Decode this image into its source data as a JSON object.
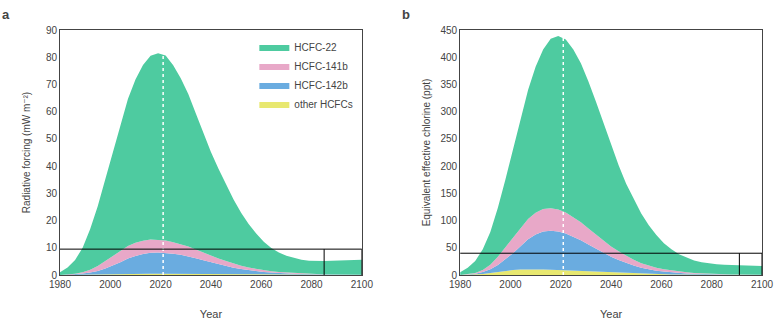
{
  "chart_data": [
    {
      "type": "area",
      "stacked": true,
      "title": "a",
      "xlabel": "Year",
      "ylabel": "Radiative forcing (mW m⁻²)",
      "x": [
        1980,
        1983,
        1986,
        1989,
        1992,
        1995,
        1998,
        2001,
        2004,
        2007,
        2010,
        2013,
        2016,
        2019,
        2022,
        2025,
        2028,
        2031,
        2034,
        2037,
        2040,
        2043,
        2046,
        2049,
        2052,
        2055,
        2058,
        2061,
        2064,
        2067,
        2070,
        2073,
        2076,
        2079,
        2082,
        2085,
        2088,
        2091,
        2094,
        2097,
        2100
      ],
      "series": [
        {
          "name": "other HCFCs",
          "color": "#e8e870",
          "values": [
            0.0,
            0.05,
            0.1,
            0.15,
            0.2,
            0.3,
            0.4,
            0.45,
            0.5,
            0.52,
            0.52,
            0.52,
            0.5,
            0.48,
            0.46,
            0.43,
            0.4,
            0.37,
            0.34,
            0.31,
            0.28,
            0.25,
            0.22,
            0.19,
            0.17,
            0.14,
            0.12,
            0.1,
            0.09,
            0.07,
            0.06,
            0.05,
            0.04,
            0.04,
            0.03,
            0.03,
            0.02,
            0.02,
            0.02,
            0.02,
            0.01
          ]
        },
        {
          "name": "HCFC-142b",
          "color": "#6aace0",
          "values": [
            0.0,
            0.1,
            0.2,
            0.4,
            0.7,
            1.2,
            2.0,
            3.0,
            4.2,
            5.5,
            6.5,
            7.2,
            7.7,
            7.8,
            7.7,
            7.4,
            7.0,
            6.5,
            5.8,
            5.1,
            4.4,
            3.7,
            3.1,
            2.5,
            2.0,
            1.6,
            1.3,
            1.0,
            0.8,
            0.6,
            0.5,
            0.4,
            0.3,
            0.25,
            0.2,
            0.15,
            0.12,
            0.1,
            0.08,
            0.07,
            0.06
          ]
        },
        {
          "name": "HCFC-141b",
          "color": "#e8a8c8",
          "values": [
            0.0,
            0.1,
            0.2,
            0.5,
            1.0,
            1.8,
            2.8,
            3.5,
            4.2,
            4.6,
            4.8,
            4.9,
            4.85,
            4.7,
            4.5,
            4.2,
            3.9,
            3.6,
            3.2,
            2.8,
            2.5,
            2.1,
            1.8,
            1.5,
            1.2,
            1.0,
            0.8,
            0.65,
            0.52,
            0.42,
            0.34,
            0.27,
            0.22,
            0.18,
            0.15,
            0.12,
            0.1,
            0.08,
            0.06,
            0.05,
            0.04
          ]
        },
        {
          "name": "HCFC-22",
          "color": "#4ecba0",
          "values": [
            1.0,
            2.5,
            5.0,
            9.0,
            15.0,
            22.0,
            30.0,
            38.0,
            46.0,
            54.0,
            60.0,
            64.5,
            67.5,
            68.5,
            68.0,
            65.0,
            61.0,
            56.0,
            50.0,
            44.0,
            38.0,
            33.0,
            28.0,
            23.5,
            19.5,
            16.0,
            13.0,
            10.5,
            8.5,
            7.2,
            6.2,
            5.5,
            5.0,
            4.8,
            4.7,
            4.8,
            5.0,
            5.2,
            5.3,
            5.4,
            5.5
          ]
        }
      ],
      "xlim": [
        1980,
        2100
      ],
      "xticks": [
        1980,
        2000,
        2020,
        2040,
        2060,
        2080,
        2100
      ],
      "ylim": [
        0,
        90
      ],
      "yticks": [
        0,
        10,
        20,
        30,
        40,
        50,
        60,
        70,
        80,
        90
      ],
      "vline_x": 2021,
      "hline_y": 9.5,
      "rect_x1": 2085,
      "legend": "upper right"
    },
    {
      "type": "area",
      "stacked": true,
      "title": "b",
      "xlabel": "Year",
      "ylabel": "Equivalent effective chlorine (ppt)",
      "x": [
        1980,
        1983,
        1986,
        1989,
        1992,
        1995,
        1998,
        2001,
        2004,
        2007,
        2010,
        2013,
        2016,
        2019,
        2022,
        2025,
        2028,
        2031,
        2034,
        2037,
        2040,
        2043,
        2046,
        2049,
        2052,
        2055,
        2058,
        2061,
        2064,
        2067,
        2070,
        2073,
        2076,
        2079,
        2082,
        2085,
        2088,
        2091,
        2094,
        2097,
        2100
      ],
      "series": [
        {
          "name": "other HCFCs",
          "color": "#e8e870",
          "values": [
            0.0,
            0.3,
            0.8,
            1.8,
            3.5,
            5.5,
            7.5,
            9.0,
            10.0,
            10.5,
            10.5,
            10.2,
            9.8,
            9.2,
            8.6,
            7.9,
            7.2,
            6.5,
            5.8,
            5.1,
            4.5,
            3.9,
            3.3,
            2.8,
            2.3,
            1.9,
            1.5,
            1.2,
            1.0,
            0.8,
            0.65,
            0.5,
            0.4,
            0.32,
            0.25,
            0.2,
            0.16,
            0.13,
            0.1,
            0.08,
            0.06
          ]
        },
        {
          "name": "HCFC-142b",
          "color": "#6aace0",
          "values": [
            0.0,
            0.5,
            1.5,
            3.5,
            7.0,
            13.0,
            21.0,
            31.0,
            43.0,
            55.0,
            64.0,
            69.5,
            71.5,
            70.5,
            67.5,
            62.5,
            56.5,
            49.5,
            42.5,
            35.5,
            29.0,
            23.5,
            18.5,
            14.5,
            11.0,
            8.5,
            6.5,
            5.0,
            3.8,
            2.9,
            2.2,
            1.7,
            1.3,
            1.0,
            0.8,
            0.6,
            0.5,
            0.4,
            0.3,
            0.25,
            0.2
          ]
        },
        {
          "name": "HCFC-141b",
          "color": "#e8a8c8",
          "values": [
            0.0,
            0.5,
            1.5,
            4.0,
            8.5,
            15.0,
            22.0,
            28.0,
            33.5,
            37.5,
            40.0,
            41.5,
            41.5,
            40.5,
            38.5,
            36.0,
            33.0,
            29.5,
            26.0,
            22.5,
            19.0,
            16.0,
            13.0,
            10.5,
            8.5,
            6.8,
            5.4,
            4.2,
            3.3,
            2.5,
            2.0,
            1.5,
            1.2,
            0.9,
            0.7,
            0.55,
            0.43,
            0.33,
            0.25,
            0.2,
            0.15
          ]
        },
        {
          "name": "HCFC-22",
          "color": "#4ecba0",
          "values": [
            5.0,
            12.0,
            22.0,
            38.0,
            60.0,
            90.0,
            125.0,
            162.0,
            200.0,
            237.0,
            268.0,
            293.0,
            311.0,
            319.0,
            318.0,
            308.0,
            292.0,
            270.0,
            244.0,
            215.0,
            185.0,
            158.0,
            133.0,
            111.0,
            91.0,
            74.0,
            60.0,
            48.0,
            39.0,
            32.0,
            27.0,
            23.0,
            20.5,
            19.0,
            18.0,
            17.5,
            17.2,
            17.0,
            16.8,
            16.5,
            16.2
          ]
        }
      ],
      "xlim": [
        1980,
        2100
      ],
      "xticks": [
        1980,
        2000,
        2020,
        2040,
        2060,
        2080,
        2100
      ],
      "ylim": [
        0,
        450
      ],
      "yticks": [
        0,
        50,
        100,
        150,
        200,
        250,
        300,
        350,
        400,
        450
      ],
      "vline_x": 2021,
      "hline_y": 40,
      "rect_x1": 2091
    }
  ]
}
